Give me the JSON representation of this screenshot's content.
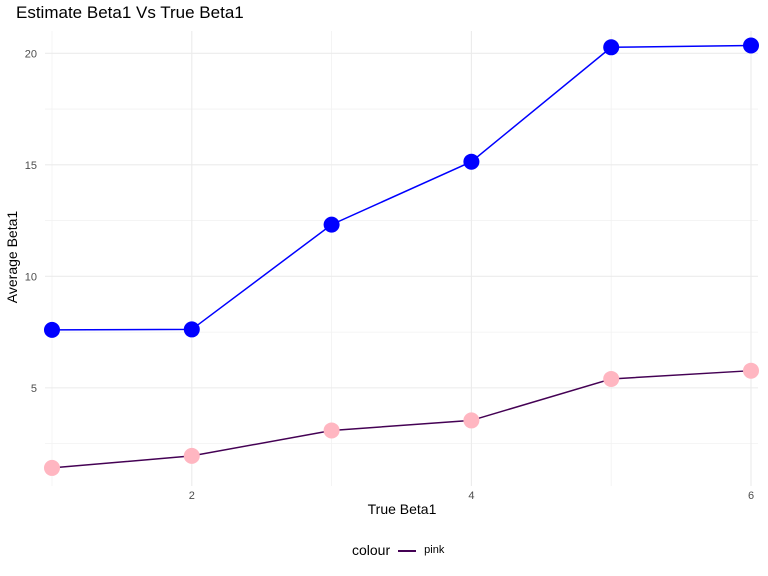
{
  "chart_data": {
    "type": "line",
    "title": "Estimate Beta1 Vs True Beta1",
    "xlabel": "True Beta1",
    "ylabel": "Average Beta1",
    "x": [
      1,
      2,
      3,
      4,
      5,
      6
    ],
    "xlim": [
      0.95,
      6.05
    ],
    "ylim": [
      0.6,
      21.0
    ],
    "xticks": [
      2,
      4,
      6
    ],
    "yticks": [
      5,
      10,
      15,
      20
    ],
    "grid": true,
    "legend_position": "bottom",
    "legend": {
      "title": "colour",
      "entries": [
        "pink"
      ]
    },
    "series": [
      {
        "values": [
          7.6,
          7.62,
          12.32,
          15.14,
          20.27,
          20.35
        ],
        "line_color": "#0000ff",
        "point_color": "#0000ff"
      },
      {
        "name": "pink",
        "values": [
          1.41,
          1.95,
          3.09,
          3.54,
          5.4,
          5.77
        ],
        "line_color": "#440154",
        "point_color": "#ffb6c1"
      }
    ]
  }
}
